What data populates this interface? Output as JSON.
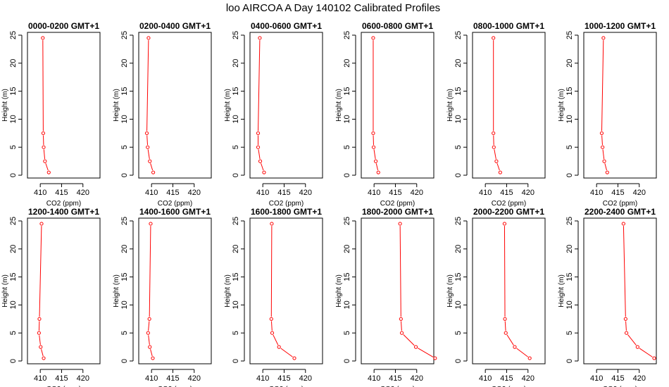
{
  "title": "loo AIRCOA A  Day 140102  Calibrated Profiles",
  "colors": {
    "series": "#ff0000",
    "frame": "#000000",
    "background": "#ffffff"
  },
  "chart_data": {
    "type": "line",
    "rows": 2,
    "cols": 6,
    "xlim": [
      407,
      424
    ],
    "ylim": [
      -0.5,
      25.5
    ],
    "xticks": [
      410,
      415,
      420
    ],
    "yticks": [
      0,
      5,
      10,
      15,
      20,
      25
    ],
    "xlabel": "CO2 (ppm)",
    "ylabel": "Height (m)",
    "grid": false,
    "legend": "none",
    "heights": [
      24.5,
      7.5,
      5.0,
      2.5,
      0.5
    ],
    "panels": [
      {
        "title": "0000-0200 GMT+1",
        "x": [
          410.6,
          410.7,
          410.8,
          411.1,
          412.0
        ]
      },
      {
        "title": "0200-0400 GMT+1",
        "x": [
          409.3,
          408.9,
          409.1,
          409.6,
          410.4
        ]
      },
      {
        "title": "0400-0600 GMT+1",
        "x": [
          409.3,
          408.9,
          408.9,
          409.4,
          410.3
        ]
      },
      {
        "title": "0600-0800 GMT+1",
        "x": [
          409.8,
          409.8,
          409.9,
          410.4,
          411.0
        ]
      },
      {
        "title": "0800-1000 GMT+1",
        "x": [
          411.9,
          411.9,
          412.0,
          412.6,
          413.5
        ]
      },
      {
        "title": "1000-1200 GMT+1",
        "x": [
          411.6,
          411.2,
          411.4,
          411.8,
          412.5
        ]
      },
      {
        "title": "1200-1400 GMT+1",
        "x": [
          410.3,
          409.8,
          409.7,
          410.1,
          410.8
        ]
      },
      {
        "title": "1400-1600 GMT+1",
        "x": [
          409.8,
          409.5,
          409.2,
          409.6,
          410.3
        ]
      },
      {
        "title": "1600-1800 GMT+1",
        "x": [
          412.1,
          412.0,
          412.2,
          413.8,
          417.4
        ]
      },
      {
        "title": "1800-2000 GMT+1",
        "x": [
          416.1,
          416.3,
          416.5,
          419.8,
          424.3
        ]
      },
      {
        "title": "2000-2200 GMT+1",
        "x": [
          414.5,
          414.6,
          414.8,
          416.9,
          420.4
        ]
      },
      {
        "title": "2200-2400 GMT+1",
        "x": [
          416.3,
          416.8,
          417.0,
          419.6,
          423.5
        ]
      }
    ]
  }
}
